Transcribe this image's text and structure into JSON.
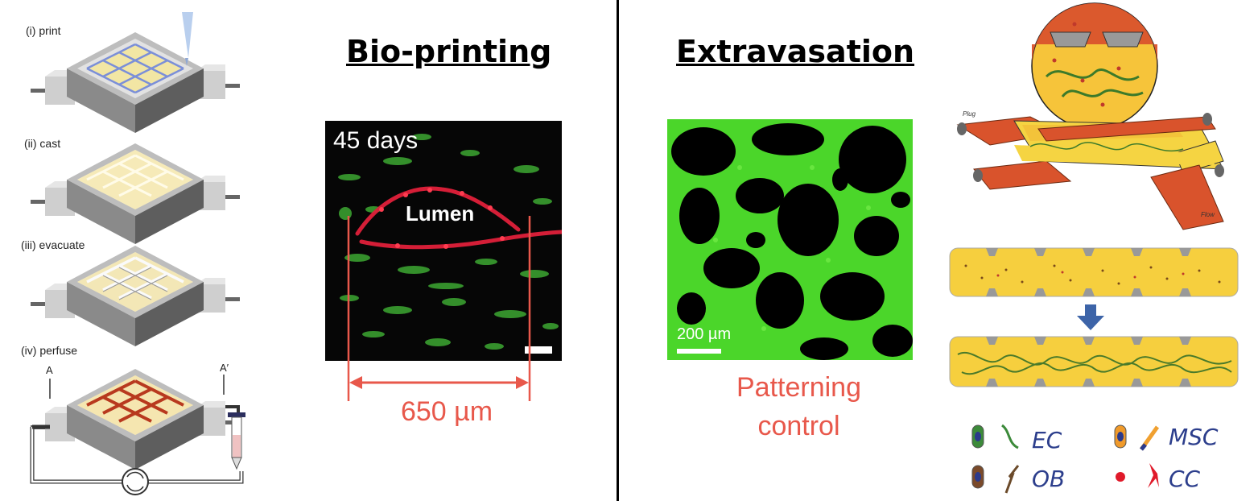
{
  "left_panel": {
    "steps": [
      {
        "label": "(i)  print"
      },
      {
        "label": "(ii)  cast"
      },
      {
        "label": "(iii)  evacuate"
      },
      {
        "label": "(iv)  perfuse"
      }
    ],
    "section_marks": {
      "a": "A",
      "a_prime": "A′"
    }
  },
  "bioprinting": {
    "title": "Bio-printing",
    "micrograph_time": "45 days",
    "micrograph_label": "Lumen",
    "measurement": "650 µm"
  },
  "extravasation": {
    "title": "Extravasation",
    "scale_bar": "200 µm",
    "caption_line1": "Patterning",
    "caption_line2": "control"
  },
  "right_panel": {
    "plug_label": "Plug",
    "flow_label": "Flow",
    "legend": [
      {
        "abbr": "EC"
      },
      {
        "abbr": "MSC"
      },
      {
        "abbr": "OB"
      },
      {
        "abbr": "CC"
      }
    ]
  },
  "colors": {
    "accent_red": "#e8584b",
    "legend_blue": "#2c3e8c",
    "vessel_green": "#4bd62a",
    "vessel_red": "#e0203a",
    "tube_orange": "#d9532c",
    "gel_yellow": "#f5d442"
  }
}
